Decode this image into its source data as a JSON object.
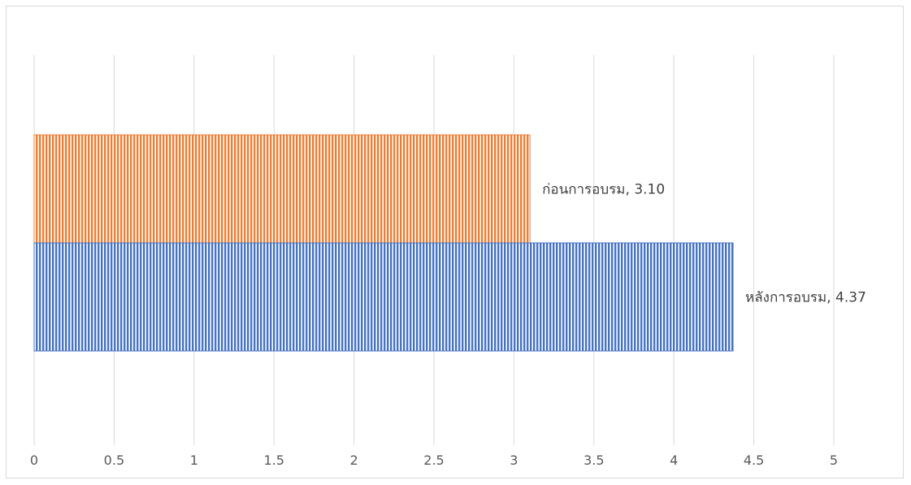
{
  "chart_data": {
    "type": "bar",
    "orientation": "horizontal",
    "title": "",
    "xlabel": "",
    "ylabel": "",
    "xlim": [
      0,
      5
    ],
    "x_ticks": [
      0,
      0.5,
      1,
      1.5,
      2,
      2.5,
      3,
      3.5,
      4,
      4.5,
      5
    ],
    "grid": "vertical",
    "legend": "none",
    "bars": [
      {
        "category": "ก่อนการอบรม",
        "value": 3.1,
        "label": "ก่อนการอบรม, 3.10",
        "color": "#ED7D31",
        "pattern": "vertical-stripes"
      },
      {
        "category": "หลังการอบรม",
        "value": 4.37,
        "label": "หลังการอบรม, 4.37",
        "color": "#4472C4",
        "pattern": "vertical-stripes"
      }
    ]
  }
}
